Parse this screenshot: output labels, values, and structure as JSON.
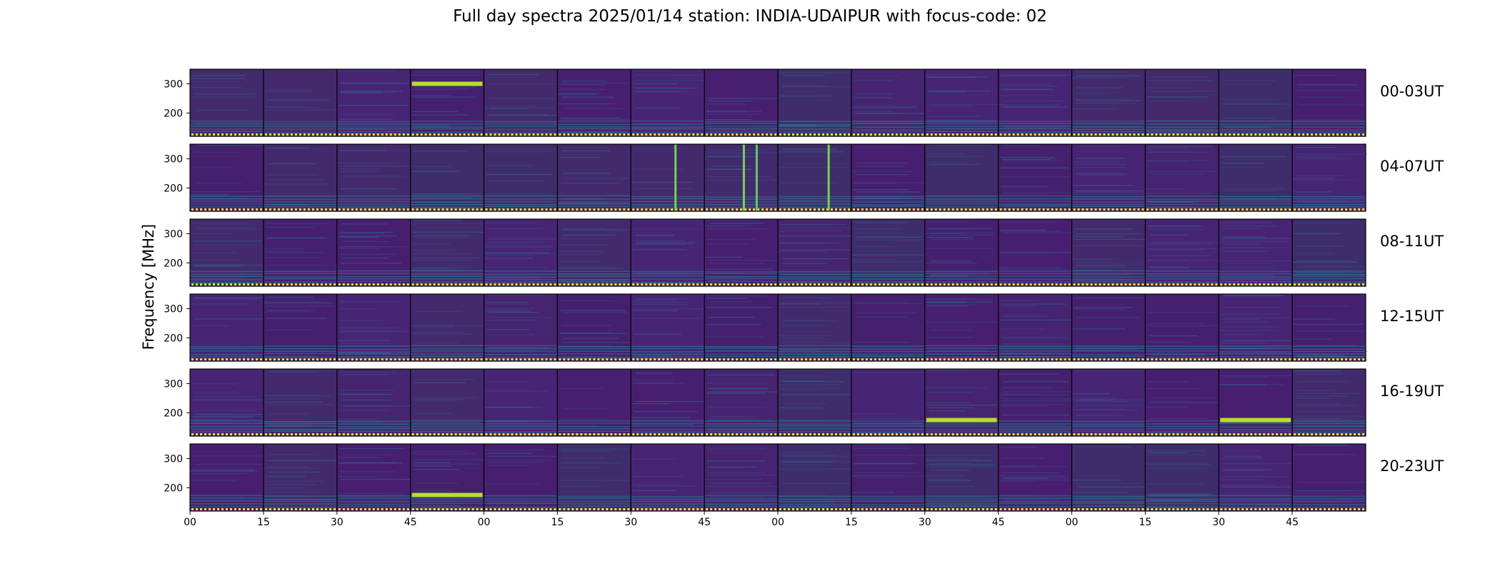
{
  "title": "Full day spectra 2025/01/14 station: INDIA-UDAIPUR with focus-code: 02",
  "chart_data": {
    "type": "heatmap",
    "title": "Full day spectra 2025/01/14 station: INDIA-UDAIPUR with focus-code: 02",
    "ylabel": "Frequency [MHz]",
    "yticks": [
      200,
      300
    ],
    "ylim": [
      120,
      350
    ],
    "xticklabels": [
      "00",
      "15",
      "30",
      "45",
      "00",
      "15",
      "30",
      "45",
      "00",
      "15",
      "30",
      "45",
      "00",
      "15",
      "30",
      "45"
    ],
    "rows": [
      {
        "label": "00-03UT"
      },
      {
        "label": "04-07UT"
      },
      {
        "label": "08-11UT"
      },
      {
        "label": "12-15UT"
      },
      {
        "label": "16-19UT"
      },
      {
        "label": "20-23UT"
      }
    ],
    "panels_per_row": 16,
    "minutes_per_panel": 15,
    "colormap": "viridis",
    "colors": {
      "background": "#45206e",
      "low": "#440154",
      "mid": "#21918c",
      "high": "#fde725"
    },
    "features": [
      {
        "row": "00-03UT",
        "panel": 3,
        "freq_mhz": 300,
        "desc": "bright horizontal band"
      },
      {
        "row": "04-07UT",
        "panel": 6,
        "freq_mhz": "all",
        "desc": "vertical broadband spike"
      },
      {
        "row": "04-07UT",
        "panel": 7,
        "freq_mhz": "all",
        "desc": "vertical broadband spikes"
      },
      {
        "row": "04-07UT",
        "panel": 8,
        "freq_mhz": "all",
        "desc": "vertical broadband spike"
      },
      {
        "row": "16-19UT",
        "panel": 10,
        "freq_mhz": 175,
        "desc": "bright horizontal band"
      },
      {
        "row": "16-19UT",
        "panel": 14,
        "freq_mhz": 175,
        "desc": "bright horizontal band"
      },
      {
        "row": "20-23UT",
        "panel": 3,
        "freq_mhz": 175,
        "desc": "bright horizontal band"
      }
    ]
  }
}
